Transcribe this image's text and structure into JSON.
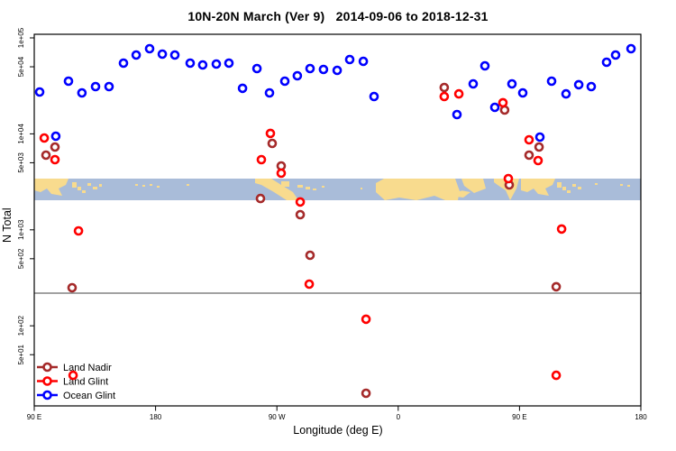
{
  "title": "10N-20N March (Ver 9)   2014-09-06 to 2018-12-31",
  "x_axis": {
    "label": "Longitude (deg E)",
    "ticks": [
      {
        "lon": 90,
        "label": "90 E"
      },
      {
        "lon": 180,
        "label": "180"
      },
      {
        "lon": 270,
        "label": "90 W"
      },
      {
        "lon": 360,
        "label": "0"
      },
      {
        "lon": 450,
        "label": "90 E"
      },
      {
        "lon": 540,
        "label": "180"
      }
    ]
  },
  "y_axis": {
    "label": "N Total",
    "ticks": [
      {
        "value": 100000,
        "label": "1e+05"
      },
      {
        "value": 50000,
        "label": "5e+04"
      },
      {
        "value": 10000,
        "label": "1e+04"
      },
      {
        "value": 5000,
        "label": "5e+03"
      },
      {
        "value": 1000,
        "label": "1e+03"
      },
      {
        "value": 500,
        "label": "5e+02"
      },
      {
        "value": 100,
        "label": "1e+02"
      },
      {
        "value": 50,
        "label": "5e+01"
      }
    ]
  },
  "reference_line": {
    "value": 219
  },
  "legend": [
    {
      "name": "Land Nadir",
      "color": "#A52A2A"
    },
    {
      "name": "Land Glint",
      "color": "#FF0000"
    },
    {
      "name": "Ocean Glint",
      "color": "#0000FF"
    }
  ],
  "colors": {
    "land_nadir": "#A52A2A",
    "land_glint": "#FF0000",
    "ocean_glint": "#0000FF",
    "map_ocean": "#A9BCD9",
    "map_land": "#F8DB8E",
    "axis": "#000000",
    "reference_line": "#444444",
    "marker_fill": "#ffffff"
  },
  "map_strip": {
    "description": "world coastline band 10N-20N latitude drawn across plot",
    "ocean_color": "#A9BCD9",
    "land_color": "#F8DB8E"
  },
  "chart_data": {
    "type": "scatter",
    "title": "10N-20N March (Ver 9)   2014-09-06 to 2018-12-31",
    "xlabel": "Longitude (deg E)",
    "ylabel": "N Total",
    "x_axis_note": "longitude in deg E increasing eastward from 90E; axis reads 90E, 180, 90W, 0, 90E, 180",
    "xlim": [
      90,
      540
    ],
    "ylim": [
      15,
      130000
    ],
    "y_scale": "log10",
    "grid": false,
    "legend_position": "bottom-left",
    "series": [
      {
        "name": "Ocean Glint",
        "color": "#0000FF",
        "points": [
          [
            94.0,
            27300
          ],
          [
            106.0,
            9450
          ],
          [
            115.4,
            35400
          ],
          [
            125.4,
            26700
          ],
          [
            135.5,
            31100
          ],
          [
            145.5,
            31100
          ],
          [
            156.2,
            54600
          ],
          [
            165.6,
            66300
          ],
          [
            175.6,
            77100
          ],
          [
            185.0,
            67700
          ],
          [
            194.3,
            66300
          ],
          [
            205.7,
            54600
          ],
          [
            215.0,
            52200
          ],
          [
            225.1,
            53400
          ],
          [
            234.4,
            54600
          ],
          [
            244.5,
            29800
          ],
          [
            255.2,
            47900
          ],
          [
            264.5,
            26700
          ],
          [
            275.9,
            35400
          ],
          [
            285.2,
            40300
          ],
          [
            294.6,
            47900
          ],
          [
            304.6,
            46900
          ],
          [
            314.7,
            45900
          ],
          [
            324.0,
            59500
          ],
          [
            334.1,
            57000
          ],
          [
            342.1,
            24500
          ],
          [
            403.6,
            15900
          ],
          [
            415.6,
            33200
          ],
          [
            424.3,
            51100
          ],
          [
            431.7,
            18900
          ],
          [
            444.4,
            33200
          ],
          [
            452.4,
            26700
          ],
          [
            465.1,
            9250
          ],
          [
            473.8,
            35400
          ],
          [
            484.5,
            26100
          ],
          [
            493.9,
            32500
          ],
          [
            503.2,
            31100
          ],
          [
            514.6,
            55700
          ],
          [
            521.3,
            66300
          ],
          [
            532.7,
            77100
          ]
        ]
      },
      {
        "name": "Land Glint",
        "color": "#FF0000",
        "points": [
          [
            97.4,
            9050
          ],
          [
            105.4,
            5390
          ],
          [
            122.8,
            975
          ],
          [
            118.8,
            30.5
          ],
          [
            258.5,
            5390
          ],
          [
            265.2,
            10100
          ],
          [
            273.2,
            3890
          ],
          [
            287.3,
            1950
          ],
          [
            294.0,
            272
          ],
          [
            336.1,
            117
          ],
          [
            394.2,
            24500
          ],
          [
            405.0,
            26100
          ],
          [
            437.7,
            21100
          ],
          [
            441.7,
            3420
          ],
          [
            457.1,
            8670
          ],
          [
            463.8,
            5270
          ],
          [
            481.2,
            1020
          ],
          [
            477.2,
            30.5
          ]
        ]
      },
      {
        "name": "Land Nadir",
        "color": "#A52A2A",
        "points": [
          [
            98.7,
            6000
          ],
          [
            105.4,
            7290
          ],
          [
            118.1,
            249
          ],
          [
            257.8,
            2120
          ],
          [
            266.5,
            7950
          ],
          [
            273.2,
            4630
          ],
          [
            287.3,
            1440
          ],
          [
            294.6,
            543
          ],
          [
            336.1,
            19.8
          ],
          [
            394.2,
            30400
          ],
          [
            439.0,
            17700
          ],
          [
            442.4,
            2940
          ],
          [
            457.1,
            6000
          ],
          [
            464.5,
            7290
          ],
          [
            477.2,
            255
          ]
        ]
      }
    ]
  }
}
